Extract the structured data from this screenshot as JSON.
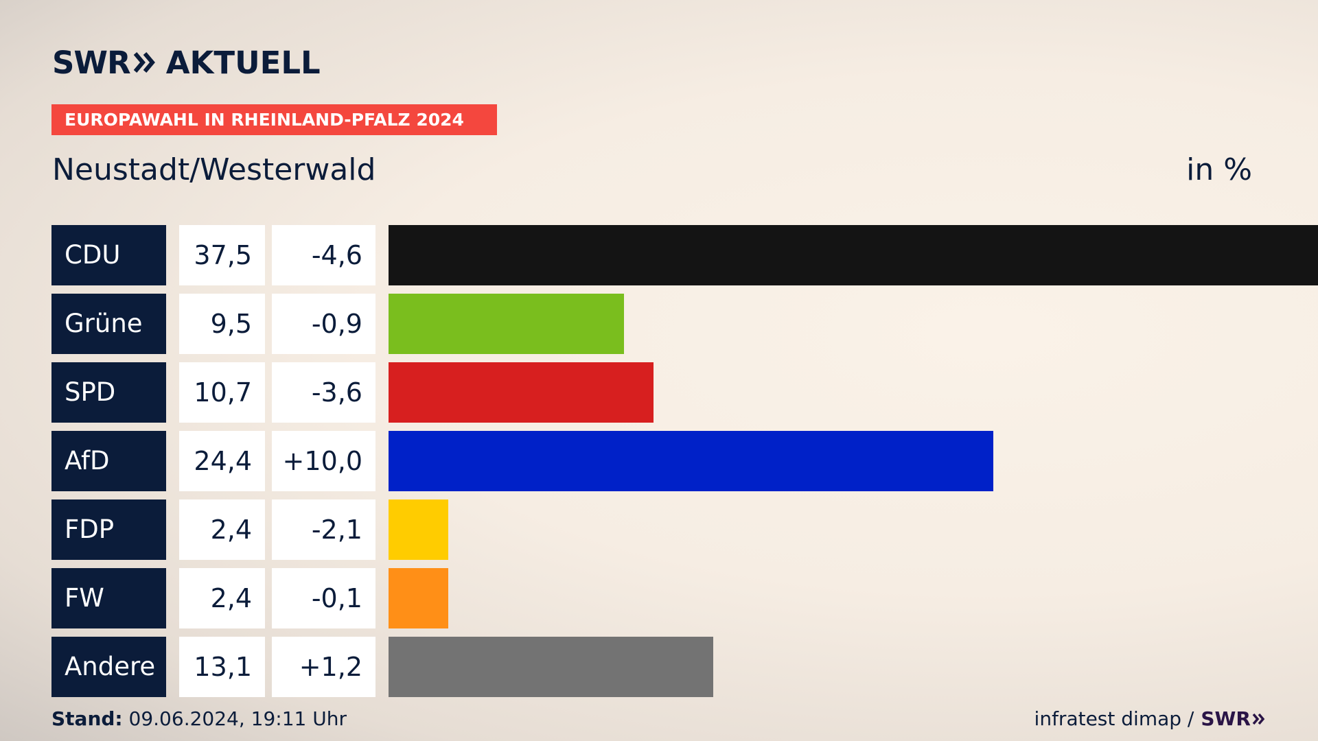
{
  "brand": {
    "logo_swr": "SWR",
    "logo_aktuell": "AKTUELL",
    "chevron_icon": "double-chevron-right-icon",
    "colors": {
      "navy": "#0b1c3a",
      "tag_red": "#f4473e"
    }
  },
  "header": {
    "tag": "EUROPAWAHL IN RHEINLAND-PFALZ 2024",
    "region": "Neustadt/Westerwald",
    "unit": "in %"
  },
  "chart_data": {
    "type": "bar",
    "orientation": "horizontal",
    "xlim": [
      0,
      37.5
    ],
    "categories": [
      "CDU",
      "Grüne",
      "SPD",
      "AfD",
      "FDP",
      "FW",
      "Andere"
    ],
    "values": [
      37.5,
      9.5,
      10.7,
      24.4,
      2.4,
      2.4,
      13.1
    ],
    "value_labels": [
      "37,5",
      "9,5",
      "10,7",
      "24,4",
      "2,4",
      "2,4",
      "13,1"
    ],
    "change_labels": [
      "-4,6",
      "-0,9",
      "-3,6",
      "+10,0",
      "-2,1",
      "-0,1",
      "+1,2"
    ],
    "colors": [
      "#141414",
      "#7abe1e",
      "#d71f1f",
      "#0021c8",
      "#ffcc00",
      "#ff8f17",
      "#737373"
    ]
  },
  "footer": {
    "stand_label": "Stand:",
    "stand_value": "09.06.2024, 19:11 Uhr",
    "source": "infratest dimap /",
    "source_brand": "SWR"
  }
}
